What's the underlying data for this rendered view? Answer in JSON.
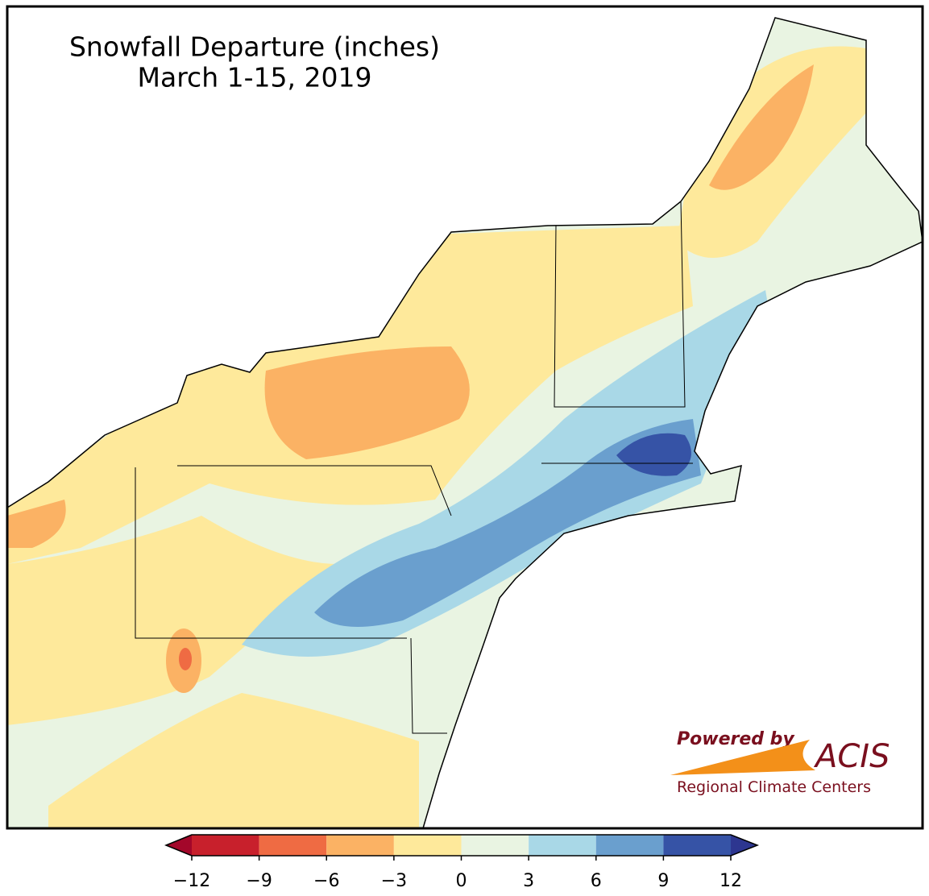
{
  "title": "Snowfall Departure (inches)",
  "subtitle": "March 1-15, 2019",
  "colorbar": {
    "ticks": [
      {
        "value": -12,
        "label": "−12"
      },
      {
        "value": -9,
        "label": "−9"
      },
      {
        "value": -6,
        "label": "−6"
      },
      {
        "value": -3,
        "label": "−3"
      },
      0,
      3,
      6,
      9,
      12
    ],
    "colors": [
      "#c8202c",
      "#ef6b43",
      "#fbb264",
      "#fee99b",
      "#e9f4e2",
      "#a9d8e7",
      "#6a9fce",
      "#3653a6"
    ],
    "under_color": "#a3072a",
    "over_color": "#2d3690"
  },
  "logo": {
    "tagline": "Powered by",
    "name": "ACIS",
    "org": "Regional Climate Centers"
  }
}
